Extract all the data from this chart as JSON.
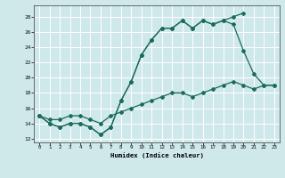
{
  "bg_color": "#cfe8ea",
  "grid_color": "#ffffff",
  "line_color": "#1a6b5a",
  "xlim": [
    -0.5,
    23.5
  ],
  "ylim": [
    11.5,
    29.5
  ],
  "xticks": [
    0,
    1,
    2,
    3,
    4,
    5,
    6,
    7,
    8,
    9,
    10,
    11,
    12,
    13,
    14,
    15,
    16,
    17,
    18,
    19,
    20,
    21,
    22,
    23
  ],
  "yticks": [
    12,
    14,
    16,
    18,
    20,
    22,
    24,
    26,
    28
  ],
  "xlabel": "Humidex (Indice chaleur)",
  "line1_x": [
    0,
    1,
    2,
    3,
    4,
    5,
    6,
    7,
    8,
    9,
    10,
    11,
    12,
    13,
    14,
    15,
    16,
    17,
    18,
    19,
    20
  ],
  "line1_y": [
    15,
    14,
    13.5,
    14,
    14,
    13.5,
    12.5,
    13.5,
    17,
    19.5,
    23,
    25,
    26.5,
    26.5,
    27.5,
    26.5,
    27.5,
    27,
    27.5,
    28,
    28.5
  ],
  "line2_x": [
    0,
    1,
    2,
    3,
    4,
    5,
    6,
    7,
    8,
    9,
    10,
    11,
    12,
    13,
    14,
    15,
    16,
    17,
    18,
    19,
    20,
    21,
    22,
    23
  ],
  "line2_y": [
    15,
    14,
    13.5,
    14,
    14,
    13.5,
    12.5,
    13.5,
    17,
    19.5,
    23,
    25,
    26.5,
    26.5,
    27.5,
    26.5,
    27.5,
    27,
    27.5,
    27,
    23.5,
    20.5,
    19.0,
    19.0
  ],
  "line3_x": [
    0,
    1,
    2,
    3,
    4,
    5,
    6,
    7,
    8,
    9,
    10,
    11,
    12,
    13,
    14,
    15,
    16,
    17,
    18,
    19,
    20,
    21,
    22,
    23
  ],
  "line3_y": [
    15,
    14.5,
    14.5,
    15,
    15,
    14.5,
    14,
    15,
    15.5,
    16,
    16.5,
    17,
    17.5,
    18,
    18,
    17.5,
    18,
    18.5,
    19,
    19.5,
    19,
    18.5,
    19,
    19
  ]
}
